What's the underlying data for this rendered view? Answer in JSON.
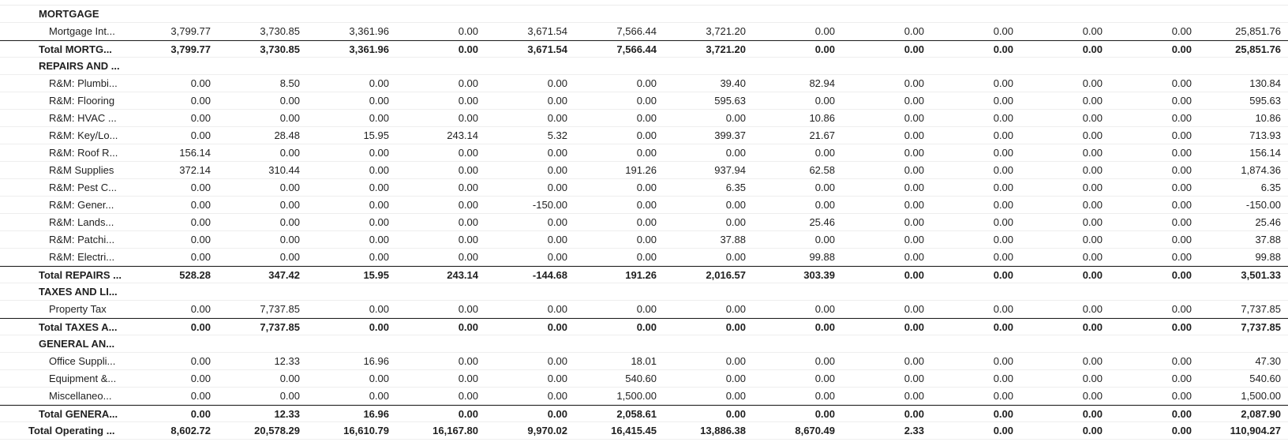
{
  "rows": [
    {
      "kind": "header",
      "label": "MORTGAGE"
    },
    {
      "kind": "item",
      "label": "Mortgage Int...",
      "values": [
        "3,799.77",
        "3,730.85",
        "3,361.96",
        "0.00",
        "3,671.54",
        "7,566.44",
        "3,721.20",
        "0.00",
        "0.00",
        "0.00",
        "0.00",
        "0.00",
        "25,851.76"
      ]
    },
    {
      "kind": "total",
      "label": "Total MORTG...",
      "values": [
        "3,799.77",
        "3,730.85",
        "3,361.96",
        "0.00",
        "3,671.54",
        "7,566.44",
        "3,721.20",
        "0.00",
        "0.00",
        "0.00",
        "0.00",
        "0.00",
        "25,851.76"
      ]
    },
    {
      "kind": "header",
      "label": "REPAIRS AND ..."
    },
    {
      "kind": "item",
      "label": "R&M: Plumbi...",
      "values": [
        "0.00",
        "8.50",
        "0.00",
        "0.00",
        "0.00",
        "0.00",
        "39.40",
        "82.94",
        "0.00",
        "0.00",
        "0.00",
        "0.00",
        "130.84"
      ]
    },
    {
      "kind": "item",
      "label": "R&M: Flooring",
      "values": [
        "0.00",
        "0.00",
        "0.00",
        "0.00",
        "0.00",
        "0.00",
        "595.63",
        "0.00",
        "0.00",
        "0.00",
        "0.00",
        "0.00",
        "595.63"
      ]
    },
    {
      "kind": "item",
      "label": "R&M: HVAC ...",
      "values": [
        "0.00",
        "0.00",
        "0.00",
        "0.00",
        "0.00",
        "0.00",
        "0.00",
        "10.86",
        "0.00",
        "0.00",
        "0.00",
        "0.00",
        "10.86"
      ]
    },
    {
      "kind": "item",
      "label": "R&M: Key/Lo...",
      "values": [
        "0.00",
        "28.48",
        "15.95",
        "243.14",
        "5.32",
        "0.00",
        "399.37",
        "21.67",
        "0.00",
        "0.00",
        "0.00",
        "0.00",
        "713.93"
      ]
    },
    {
      "kind": "item",
      "label": "R&M: Roof R...",
      "values": [
        "156.14",
        "0.00",
        "0.00",
        "0.00",
        "0.00",
        "0.00",
        "0.00",
        "0.00",
        "0.00",
        "0.00",
        "0.00",
        "0.00",
        "156.14"
      ]
    },
    {
      "kind": "item",
      "label": "R&M Supplies",
      "values": [
        "372.14",
        "310.44",
        "0.00",
        "0.00",
        "0.00",
        "191.26",
        "937.94",
        "62.58",
        "0.00",
        "0.00",
        "0.00",
        "0.00",
        "1,874.36"
      ]
    },
    {
      "kind": "item",
      "label": "R&M: Pest C...",
      "values": [
        "0.00",
        "0.00",
        "0.00",
        "0.00",
        "0.00",
        "0.00",
        "6.35",
        "0.00",
        "0.00",
        "0.00",
        "0.00",
        "0.00",
        "6.35"
      ]
    },
    {
      "kind": "item",
      "label": "R&M: Gener...",
      "values": [
        "0.00",
        "0.00",
        "0.00",
        "0.00",
        "-150.00",
        "0.00",
        "0.00",
        "0.00",
        "0.00",
        "0.00",
        "0.00",
        "0.00",
        "-150.00"
      ]
    },
    {
      "kind": "item",
      "label": "R&M: Lands...",
      "values": [
        "0.00",
        "0.00",
        "0.00",
        "0.00",
        "0.00",
        "0.00",
        "0.00",
        "25.46",
        "0.00",
        "0.00",
        "0.00",
        "0.00",
        "25.46"
      ]
    },
    {
      "kind": "item",
      "label": "R&M: Patchi...",
      "values": [
        "0.00",
        "0.00",
        "0.00",
        "0.00",
        "0.00",
        "0.00",
        "37.88",
        "0.00",
        "0.00",
        "0.00",
        "0.00",
        "0.00",
        "37.88"
      ]
    },
    {
      "kind": "item",
      "label": "R&M: Electri...",
      "values": [
        "0.00",
        "0.00",
        "0.00",
        "0.00",
        "0.00",
        "0.00",
        "0.00",
        "99.88",
        "0.00",
        "0.00",
        "0.00",
        "0.00",
        "99.88"
      ]
    },
    {
      "kind": "total",
      "label": "Total REPAIRS ...",
      "values": [
        "528.28",
        "347.42",
        "15.95",
        "243.14",
        "-144.68",
        "191.26",
        "2,016.57",
        "303.39",
        "0.00",
        "0.00",
        "0.00",
        "0.00",
        "3,501.33"
      ]
    },
    {
      "kind": "header",
      "label": "TAXES AND LI..."
    },
    {
      "kind": "item",
      "label": "Property Tax",
      "values": [
        "0.00",
        "7,737.85",
        "0.00",
        "0.00",
        "0.00",
        "0.00",
        "0.00",
        "0.00",
        "0.00",
        "0.00",
        "0.00",
        "0.00",
        "7,737.85"
      ]
    },
    {
      "kind": "total",
      "label": "Total TAXES A...",
      "values": [
        "0.00",
        "7,737.85",
        "0.00",
        "0.00",
        "0.00",
        "0.00",
        "0.00",
        "0.00",
        "0.00",
        "0.00",
        "0.00",
        "0.00",
        "7,737.85"
      ]
    },
    {
      "kind": "header",
      "label": "GENERAL AN..."
    },
    {
      "kind": "item",
      "label": "Office Suppli...",
      "values": [
        "0.00",
        "12.33",
        "16.96",
        "0.00",
        "0.00",
        "18.01",
        "0.00",
        "0.00",
        "0.00",
        "0.00",
        "0.00",
        "0.00",
        "47.30"
      ]
    },
    {
      "kind": "item",
      "label": "Equipment &...",
      "values": [
        "0.00",
        "0.00",
        "0.00",
        "0.00",
        "0.00",
        "540.60",
        "0.00",
        "0.00",
        "0.00",
        "0.00",
        "0.00",
        "0.00",
        "540.60"
      ]
    },
    {
      "kind": "item",
      "label": "Miscellaneo...",
      "values": [
        "0.00",
        "0.00",
        "0.00",
        "0.00",
        "0.00",
        "1,500.00",
        "0.00",
        "0.00",
        "0.00",
        "0.00",
        "0.00",
        "0.00",
        "1,500.00"
      ]
    },
    {
      "kind": "total",
      "label": "Total GENERA...",
      "values": [
        "0.00",
        "12.33",
        "16.96",
        "0.00",
        "0.00",
        "2,058.61",
        "0.00",
        "0.00",
        "0.00",
        "0.00",
        "0.00",
        "0.00",
        "2,087.90"
      ]
    },
    {
      "kind": "grand",
      "label": "Total Operating ...",
      "values": [
        "8,602.72",
        "20,578.29",
        "16,610.79",
        "16,167.80",
        "9,970.02",
        "16,415.45",
        "13,886.38",
        "8,670.49",
        "2.33",
        "0.00",
        "0.00",
        "0.00",
        "110,904.27"
      ]
    }
  ]
}
